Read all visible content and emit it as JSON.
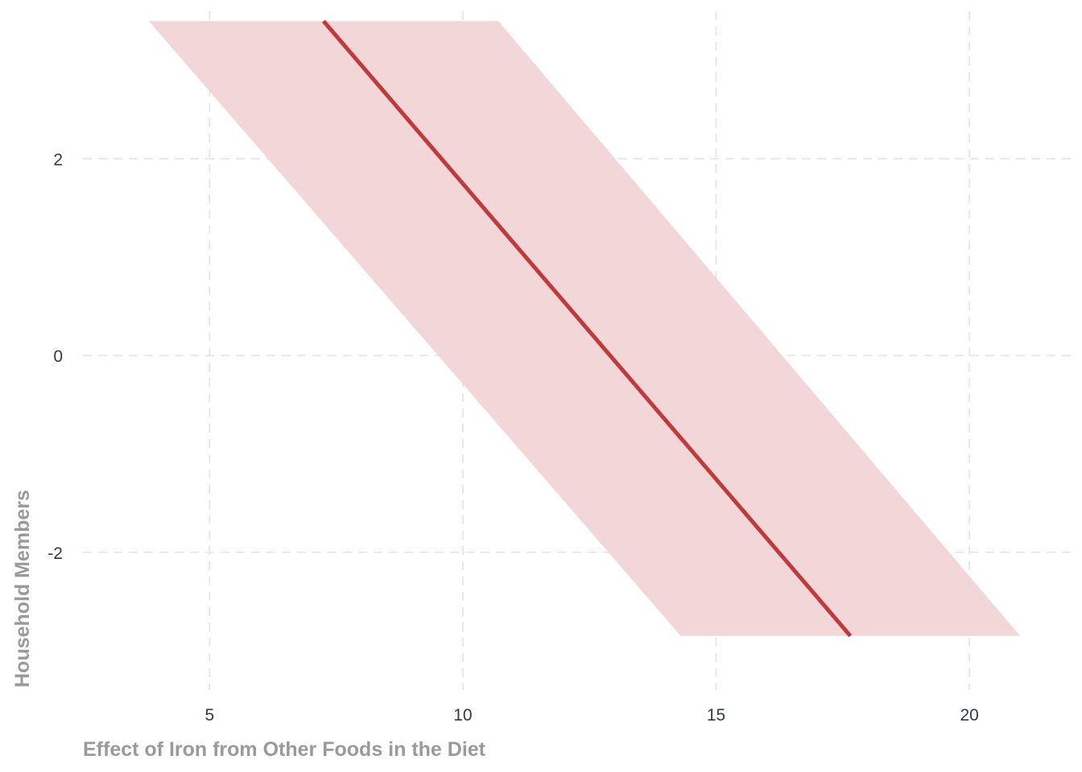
{
  "chart_data": {
    "type": "area",
    "xlabel": "Effect of Iron from Other Foods in the Diet",
    "ylabel": "Household Members",
    "x_ticks": [
      5,
      10,
      15,
      20
    ],
    "y_ticks": [
      2,
      0,
      -2
    ],
    "xlim": [
      2.5,
      22
    ],
    "ylim": [
      -3.4,
      3.5
    ],
    "grid": true,
    "series": [
      {
        "kind": "line",
        "points": [
          {
            "x": 7.25,
            "y": 3.4
          },
          {
            "x": 17.65,
            "y": -2.85
          }
        ]
      },
      {
        "kind": "band",
        "points": [
          {
            "x": 3.8,
            "y": 3.4
          },
          {
            "x": 10.7,
            "y": 3.4
          },
          {
            "x": 21.0,
            "y": -2.85
          },
          {
            "x": 14.3,
            "y": -2.85
          }
        ]
      }
    ],
    "colors": {
      "line": "#c0393b",
      "band": "#f3d7d8",
      "grid": "#e3e3e3"
    }
  }
}
